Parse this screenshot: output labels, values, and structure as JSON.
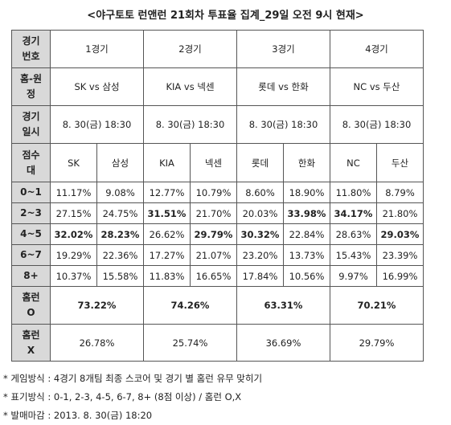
{
  "title": "<야구토토 런앤런 21회차 투표율 집계_29일 오전 9시 현재>",
  "header_labels": {
    "game_no": [
      "경기",
      "번호"
    ],
    "home_away": [
      "홈-원",
      "정"
    ],
    "datetime": [
      "경기",
      "일시"
    ],
    "score_band": [
      "점수",
      "대"
    ],
    "homerun_o": [
      "홈런",
      "O"
    ],
    "homerun_x": [
      "홈런",
      "X"
    ]
  },
  "games": [
    {
      "label": "1경기",
      "match": "SK vs 삼성",
      "datetime": "8. 30(금) 18:30",
      "home": "SK",
      "away": "삼성",
      "homerun_o": "73.22%",
      "homerun_x": "26.78%"
    },
    {
      "label": "2경기",
      "match": "KIA vs 넥센",
      "datetime": "8. 30(금) 18:30",
      "home": "KIA",
      "away": "넥센",
      "homerun_o": "74.26%",
      "homerun_x": "25.74%"
    },
    {
      "label": "3경기",
      "match": "롯데 vs 한화",
      "datetime": "8. 30(금) 18:30",
      "home": "롯데",
      "away": "한화",
      "homerun_o": "63.31%",
      "homerun_x": "36.69%"
    },
    {
      "label": "4경기",
      "match": "NC vs 두산",
      "datetime": "8. 30(금) 18:30",
      "home": "NC",
      "away": "두산",
      "homerun_o": "70.21%",
      "homerun_x": "29.79%"
    }
  ],
  "score_rows": [
    {
      "band": "0~1",
      "cells": [
        {
          "v": "11.17%",
          "bold": false
        },
        {
          "v": "9.08%",
          "bold": false
        },
        {
          "v": "12.77%",
          "bold": false
        },
        {
          "v": "10.79%",
          "bold": false
        },
        {
          "v": "8.60%",
          "bold": false
        },
        {
          "v": "18.90%",
          "bold": false
        },
        {
          "v": "11.80%",
          "bold": false
        },
        {
          "v": "8.79%",
          "bold": false
        }
      ]
    },
    {
      "band": "2~3",
      "cells": [
        {
          "v": "27.15%",
          "bold": false
        },
        {
          "v": "24.75%",
          "bold": false
        },
        {
          "v": "31.51%",
          "bold": true
        },
        {
          "v": "21.70%",
          "bold": false
        },
        {
          "v": "20.03%",
          "bold": false
        },
        {
          "v": "33.98%",
          "bold": true
        },
        {
          "v": "34.17%",
          "bold": true
        },
        {
          "v": "21.80%",
          "bold": false
        }
      ]
    },
    {
      "band": "4~5",
      "cells": [
        {
          "v": "32.02%",
          "bold": true
        },
        {
          "v": "28.23%",
          "bold": true
        },
        {
          "v": "26.62%",
          "bold": false
        },
        {
          "v": "29.79%",
          "bold": true
        },
        {
          "v": "30.32%",
          "bold": true
        },
        {
          "v": "22.84%",
          "bold": false
        },
        {
          "v": "28.63%",
          "bold": false
        },
        {
          "v": "29.03%",
          "bold": true
        }
      ]
    },
    {
      "band": "6~7",
      "cells": [
        {
          "v": "19.29%",
          "bold": false
        },
        {
          "v": "22.36%",
          "bold": false
        },
        {
          "v": "17.27%",
          "bold": false
        },
        {
          "v": "21.07%",
          "bold": false
        },
        {
          "v": "23.20%",
          "bold": false
        },
        {
          "v": "13.73%",
          "bold": false
        },
        {
          "v": "15.43%",
          "bold": false
        },
        {
          "v": "23.39%",
          "bold": false
        }
      ]
    },
    {
      "band": "8+",
      "cells": [
        {
          "v": "10.37%",
          "bold": false
        },
        {
          "v": "15.58%",
          "bold": false
        },
        {
          "v": "11.83%",
          "bold": false
        },
        {
          "v": "16.65%",
          "bold": false
        },
        {
          "v": "17.84%",
          "bold": false
        },
        {
          "v": "10.56%",
          "bold": false
        },
        {
          "v": "9.97%",
          "bold": false
        },
        {
          "v": "16.99%",
          "bold": false
        }
      ]
    }
  ],
  "notes": [
    "* 게임방식 : 4경기 8개팀 최종 스코어 및 경기 별 홈런 유무 맞히기",
    "* 표기방식 : 0-1, 2-3, 4-5, 6-7, 8+ (8점 이상) / 홈런 O,X",
    "* 발매마감 : 2013. 8. 30(금) 18:20"
  ]
}
